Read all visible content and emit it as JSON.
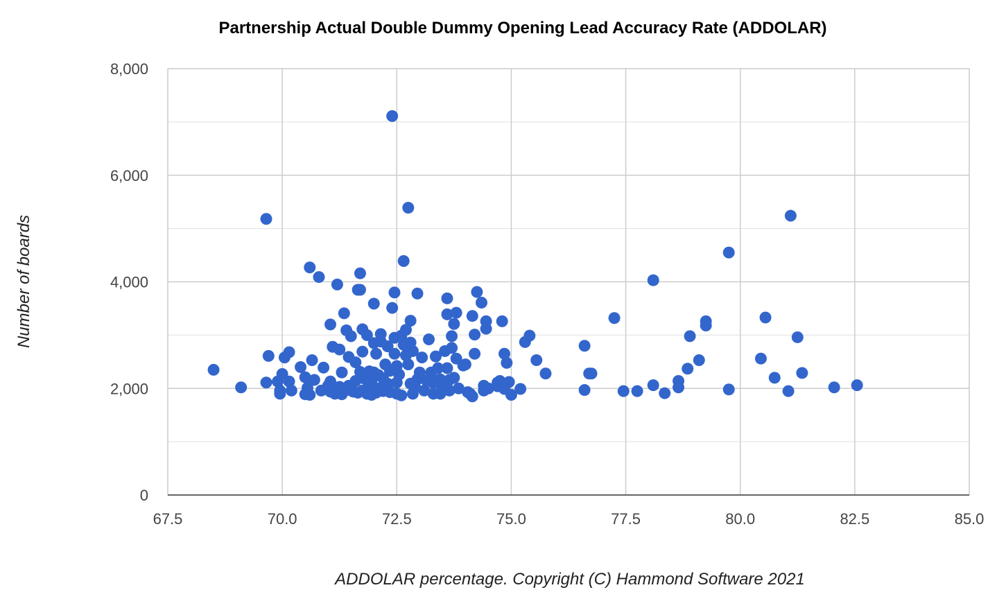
{
  "chart_data": {
    "type": "scatter",
    "title": "Partnership Actual Double Dummy Opening Lead Accuracy Rate (ADDOLAR)",
    "xlabel": "ADDOLAR percentage. Copyright (C) Hammond Software 2021",
    "ylabel": "Number of boards",
    "xlim": [
      67.5,
      85.0
    ],
    "ylim": [
      0,
      8000
    ],
    "x_ticks": [
      "67.5",
      "70.0",
      "72.5",
      "75.0",
      "77.5",
      "80.0",
      "82.5",
      "85.0"
    ],
    "y_ticks": [
      "0",
      "2,000",
      "4,000",
      "6,000",
      "8,000"
    ],
    "grid": true,
    "legend": "none",
    "color": "#3366cc",
    "points": [
      [
        68.5,
        2350
      ],
      [
        69.1,
        2020
      ],
      [
        69.65,
        5180
      ],
      [
        69.65,
        2110
      ],
      [
        69.7,
        2610
      ],
      [
        69.9,
        2130
      ],
      [
        69.95,
        1960
      ],
      [
        69.95,
        1900
      ],
      [
        70.0,
        2270
      ],
      [
        70.05,
        2580
      ],
      [
        70.15,
        2680
      ],
      [
        70.15,
        2130
      ],
      [
        70.2,
        1960
      ],
      [
        70.4,
        2400
      ],
      [
        70.5,
        2210
      ],
      [
        70.5,
        1890
      ],
      [
        70.55,
        2010
      ],
      [
        70.6,
        1880
      ],
      [
        70.6,
        4270
      ],
      [
        70.65,
        2530
      ],
      [
        70.7,
        2160
      ],
      [
        70.8,
        4090
      ],
      [
        70.85,
        1960
      ],
      [
        70.9,
        2390
      ],
      [
        71.0,
        2050
      ],
      [
        71.05,
        1940
      ],
      [
        71.05,
        3200
      ],
      [
        71.05,
        2130
      ],
      [
        71.1,
        2780
      ],
      [
        71.15,
        1900
      ],
      [
        71.2,
        3950
      ],
      [
        71.25,
        2030
      ],
      [
        71.25,
        2730
      ],
      [
        71.3,
        1890
      ],
      [
        71.3,
        2300
      ],
      [
        71.35,
        3410
      ],
      [
        71.4,
        3090
      ],
      [
        71.45,
        2050
      ],
      [
        71.45,
        2590
      ],
      [
        71.5,
        1960
      ],
      [
        71.5,
        2980
      ],
      [
        71.55,
        1940
      ],
      [
        71.6,
        2490
      ],
      [
        71.6,
        2140
      ],
      [
        71.65,
        3850
      ],
      [
        71.65,
        1920
      ],
      [
        71.7,
        4160
      ],
      [
        71.7,
        3850
      ],
      [
        71.7,
        2310
      ],
      [
        71.75,
        2690
      ],
      [
        71.75,
        1960
      ],
      [
        71.75,
        3110
      ],
      [
        71.8,
        2180
      ],
      [
        71.85,
        3000
      ],
      [
        71.85,
        1900
      ],
      [
        71.9,
        2320
      ],
      [
        71.9,
        2060
      ],
      [
        71.95,
        2140
      ],
      [
        71.95,
        1880
      ],
      [
        72.0,
        2850
      ],
      [
        72.0,
        3590
      ],
      [
        72.0,
        2300
      ],
      [
        72.05,
        1920
      ],
      [
        72.05,
        2650
      ],
      [
        72.1,
        2250
      ],
      [
        72.1,
        2000
      ],
      [
        72.15,
        2880
      ],
      [
        72.15,
        3020
      ],
      [
        72.2,
        2190
      ],
      [
        72.2,
        1950
      ],
      [
        72.25,
        2450
      ],
      [
        72.3,
        2790
      ],
      [
        72.3,
        2090
      ],
      [
        72.35,
        1930
      ],
      [
        72.35,
        2330
      ],
      [
        72.4,
        7110
      ],
      [
        72.4,
        3510
      ],
      [
        72.45,
        3800
      ],
      [
        72.45,
        2950
      ],
      [
        72.45,
        2650
      ],
      [
        72.5,
        2420
      ],
      [
        72.5,
        2110
      ],
      [
        72.5,
        1900
      ],
      [
        72.55,
        2260
      ],
      [
        72.6,
        2990
      ],
      [
        72.6,
        1870
      ],
      [
        72.65,
        4390
      ],
      [
        72.65,
        2820
      ],
      [
        72.7,
        3100
      ],
      [
        72.7,
        2620
      ],
      [
        72.75,
        5390
      ],
      [
        72.75,
        2450
      ],
      [
        72.8,
        2090
      ],
      [
        72.8,
        2860
      ],
      [
        72.8,
        3270
      ],
      [
        72.85,
        1900
      ],
      [
        72.85,
        2700
      ],
      [
        72.9,
        2020
      ],
      [
        72.95,
        2170
      ],
      [
        72.95,
        3780
      ],
      [
        73.0,
        2300
      ],
      [
        73.05,
        2580
      ],
      [
        73.1,
        1960
      ],
      [
        73.15,
        2150
      ],
      [
        73.2,
        2920
      ],
      [
        73.25,
        2300
      ],
      [
        73.3,
        1900
      ],
      [
        73.3,
        2100
      ],
      [
        73.35,
        2600
      ],
      [
        73.4,
        2380
      ],
      [
        73.45,
        2170
      ],
      [
        73.45,
        1900
      ],
      [
        73.5,
        2010
      ],
      [
        73.55,
        2700
      ],
      [
        73.6,
        3690
      ],
      [
        73.6,
        3390
      ],
      [
        73.6,
        2380
      ],
      [
        73.65,
        2160
      ],
      [
        73.65,
        1960
      ],
      [
        73.7,
        2980
      ],
      [
        73.7,
        2760
      ],
      [
        73.75,
        3210
      ],
      [
        73.75,
        2200
      ],
      [
        73.8,
        3420
      ],
      [
        73.8,
        2560
      ],
      [
        73.85,
        2000
      ],
      [
        73.95,
        2430
      ],
      [
        74.0,
        2450
      ],
      [
        74.05,
        1930
      ],
      [
        74.1,
        1900
      ],
      [
        74.15,
        1850
      ],
      [
        74.15,
        3360
      ],
      [
        74.2,
        3010
      ],
      [
        74.2,
        2650
      ],
      [
        74.25,
        3810
      ],
      [
        74.35,
        3610
      ],
      [
        74.4,
        2050
      ],
      [
        74.4,
        1960
      ],
      [
        74.45,
        3120
      ],
      [
        74.45,
        3260
      ],
      [
        74.5,
        2000
      ],
      [
        74.7,
        2110
      ],
      [
        74.7,
        2040
      ],
      [
        74.75,
        2140
      ],
      [
        74.8,
        3260
      ],
      [
        74.85,
        2650
      ],
      [
        74.85,
        1990
      ],
      [
        74.9,
        2480
      ],
      [
        74.95,
        2120
      ],
      [
        75.0,
        1880
      ],
      [
        75.2,
        1990
      ],
      [
        75.3,
        2870
      ],
      [
        75.4,
        2990
      ],
      [
        75.55,
        2530
      ],
      [
        75.75,
        2280
      ],
      [
        76.6,
        2800
      ],
      [
        76.6,
        1970
      ],
      [
        76.7,
        2280
      ],
      [
        76.75,
        2280
      ],
      [
        77.25,
        3320
      ],
      [
        77.45,
        1950
      ],
      [
        77.75,
        1950
      ],
      [
        78.1,
        2060
      ],
      [
        78.1,
        4030
      ],
      [
        78.35,
        1910
      ],
      [
        78.65,
        2020
      ],
      [
        78.65,
        2140
      ],
      [
        78.85,
        2370
      ],
      [
        78.9,
        2980
      ],
      [
        79.1,
        2530
      ],
      [
        79.25,
        3260
      ],
      [
        79.25,
        3180
      ],
      [
        79.75,
        1980
      ],
      [
        79.75,
        4550
      ],
      [
        80.45,
        2560
      ],
      [
        80.55,
        3330
      ],
      [
        80.75,
        2200
      ],
      [
        81.05,
        1950
      ],
      [
        81.1,
        5240
      ],
      [
        81.25,
        2960
      ],
      [
        81.35,
        2290
      ],
      [
        82.05,
        2020
      ],
      [
        82.55,
        2060
      ]
    ]
  }
}
